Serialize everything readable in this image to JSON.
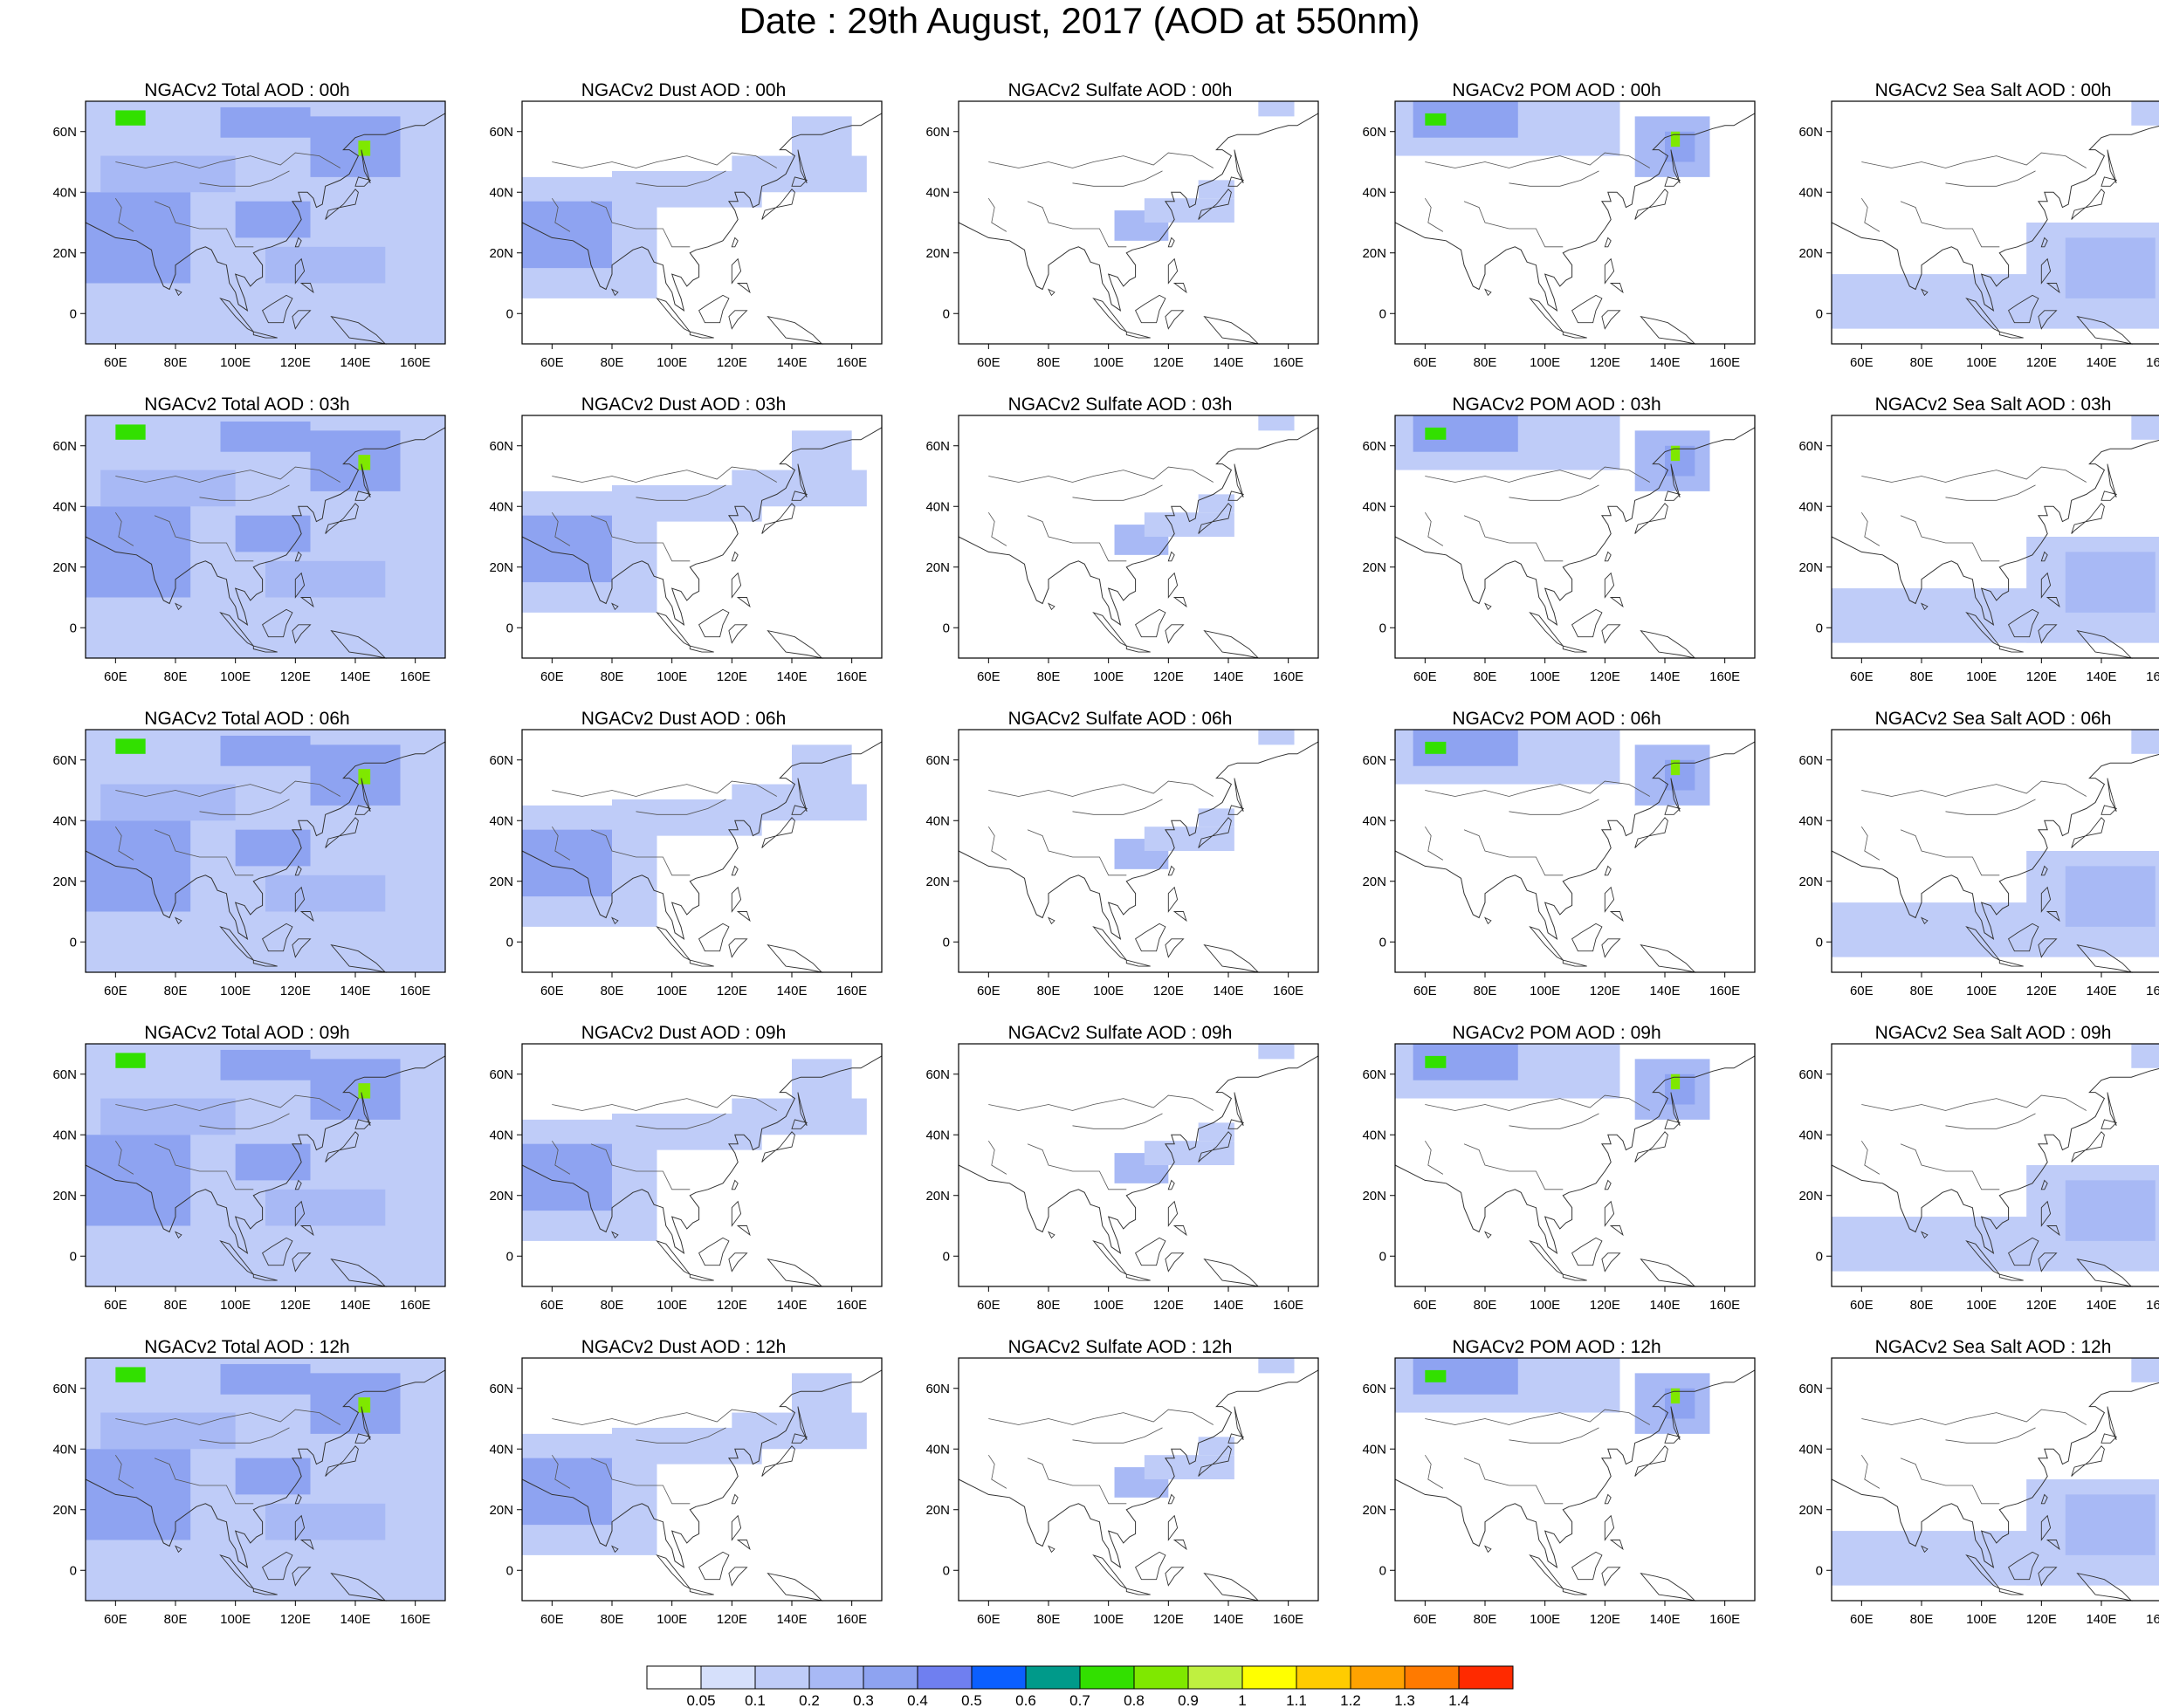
{
  "title": "Date : 29th August, 2017 (AOD at 550nm)",
  "axes": {
    "x_ticks": [
      "60E",
      "80E",
      "100E",
      "120E",
      "140E",
      "160E"
    ],
    "y_ticks": [
      "60N",
      "40N",
      "20N",
      "0"
    ],
    "lon_range": [
      50,
      170
    ],
    "lat_range": [
      -10,
      70
    ]
  },
  "panels": [
    [
      "NGACv2 Total AOD : 00h",
      "NGACv2 Dust AOD : 00h",
      "NGACv2 Sulfate AOD : 00h",
      "NGACv2 POM AOD : 00h",
      "NGACv2 Sea Salt AOD : 00h"
    ],
    [
      "NGACv2 Total AOD : 03h",
      "NGACv2 Dust AOD : 03h",
      "NGACv2 Sulfate AOD : 03h",
      "NGACv2 POM AOD : 03h",
      "NGACv2 Sea Salt AOD : 03h"
    ],
    [
      "NGACv2 Total AOD : 06h",
      "NGACv2 Dust AOD : 06h",
      "NGACv2 Sulfate AOD : 06h",
      "NGACv2 POM AOD : 06h",
      "NGACv2 Sea Salt AOD : 06h"
    ],
    [
      "NGACv2 Total AOD : 09h",
      "NGACv2 Dust AOD : 09h",
      "NGACv2 Sulfate AOD : 09h",
      "NGACv2 POM AOD : 09h",
      "NGACv2 Sea Salt  AOD : 09h"
    ],
    [
      "NGACv2 Total AOD  : 12h",
      "NGACv2 Dust AOD : 12h",
      "NGACv2 Sulfate AOD : 12h",
      "NGACv2 POM  AOD : 12h",
      "NGACv2 Sea Salt  AOD : 12h"
    ]
  ],
  "colorbar": {
    "labels": [
      "0.05",
      "0.1",
      "0.2",
      "0.3",
      "0.4",
      "0.5",
      "0.6",
      "0.7",
      "0.8",
      "0.9",
      "1",
      "1.1",
      "1.2",
      "1.3",
      "1.4"
    ],
    "colors": [
      "#ffffff",
      "#d6e0fb",
      "#bfccf8",
      "#a8b9f5",
      "#8ea3f1",
      "#6f7ff0",
      "#0b5fff",
      "#009a8a",
      "#32e000",
      "#7fe800",
      "#bff040",
      "#ffff00",
      "#ffcc00",
      "#ffa200",
      "#ff7a00",
      "#ff2a00"
    ]
  },
  "fields": {
    "total": [
      {
        "lon": 50,
        "lat": 30,
        "w": 120,
        "h": 40,
        "v": 0.15
      },
      {
        "lon": 50,
        "lat": -10,
        "w": 120,
        "h": 40,
        "v": 0.12
      },
      {
        "lon": 50,
        "lat": 10,
        "w": 35,
        "h": 30,
        "v": 0.3
      },
      {
        "lon": 55,
        "lat": 40,
        "w": 45,
        "h": 12,
        "v": 0.25
      },
      {
        "lon": 100,
        "lat": 25,
        "w": 25,
        "h": 12,
        "v": 0.3
      },
      {
        "lon": 125,
        "lat": 45,
        "w": 30,
        "h": 20,
        "v": 0.3
      },
      {
        "lon": 95,
        "lat": 58,
        "w": 30,
        "h": 10,
        "v": 0.3
      },
      {
        "lon": 60,
        "lat": 62,
        "w": 10,
        "h": 5,
        "v": 0.7
      },
      {
        "lon": 141,
        "lat": 52,
        "w": 4,
        "h": 5,
        "v": 0.8
      },
      {
        "lon": 110,
        "lat": 10,
        "w": 40,
        "h": 12,
        "v": 0.2
      }
    ],
    "dust": [
      {
        "lon": 50,
        "lat": 5,
        "w": 45,
        "h": 40,
        "v": 0.15
      },
      {
        "lon": 50,
        "lat": 15,
        "w": 30,
        "h": 22,
        "v": 0.3
      },
      {
        "lon": 80,
        "lat": 35,
        "w": 50,
        "h": 12,
        "v": 0.15
      },
      {
        "lon": 120,
        "lat": 40,
        "w": 45,
        "h": 12,
        "v": 0.1
      },
      {
        "lon": 140,
        "lat": 50,
        "w": 20,
        "h": 15,
        "v": 0.1
      }
    ],
    "sulfate": [
      {
        "lon": 102,
        "lat": 24,
        "w": 18,
        "h": 10,
        "v": 0.2
      },
      {
        "lon": 112,
        "lat": 30,
        "w": 30,
        "h": 8,
        "v": 0.1
      },
      {
        "lon": 130,
        "lat": 38,
        "w": 12,
        "h": 6,
        "v": 0.1
      },
      {
        "lon": 150,
        "lat": 65,
        "w": 12,
        "h": 5,
        "v": 0.1
      }
    ],
    "pom": [
      {
        "lon": 50,
        "lat": 52,
        "w": 75,
        "h": 18,
        "v": 0.15
      },
      {
        "lon": 56,
        "lat": 58,
        "w": 35,
        "h": 12,
        "v": 0.3
      },
      {
        "lon": 130,
        "lat": 45,
        "w": 25,
        "h": 20,
        "v": 0.2
      },
      {
        "lon": 140,
        "lat": 50,
        "w": 10,
        "h": 10,
        "v": 0.35
      },
      {
        "lon": 142,
        "lat": 55,
        "w": 3,
        "h": 5,
        "v": 0.8
      },
      {
        "lon": 60,
        "lat": 62,
        "w": 7,
        "h": 4,
        "v": 0.7
      }
    ],
    "seasalt": [
      {
        "lon": 50,
        "lat": -5,
        "w": 70,
        "h": 18,
        "v": 0.1
      },
      {
        "lon": 115,
        "lat": -5,
        "w": 45,
        "h": 35,
        "v": 0.12
      },
      {
        "lon": 128,
        "lat": 5,
        "w": 30,
        "h": 20,
        "v": 0.2
      },
      {
        "lon": 150,
        "lat": 62,
        "w": 20,
        "h": 8,
        "v": 0.1
      }
    ]
  }
}
